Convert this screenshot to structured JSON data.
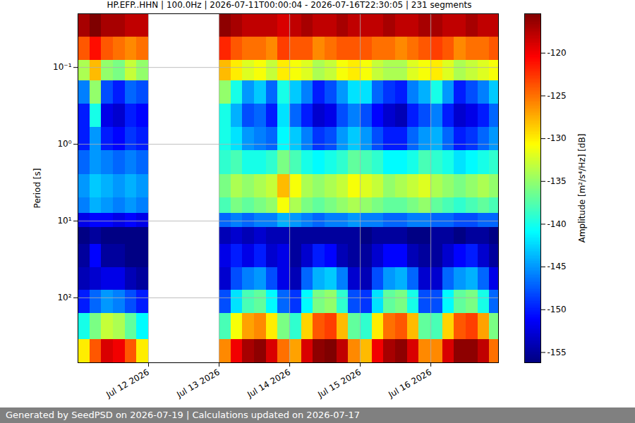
{
  "chart_data": {
    "type": "heatmap",
    "title": "HP.EFP..HHN | 100.0Hz | 2026-07-11T00:00:04 - 2026-07-16T22:30:05 | 231 segments",
    "caption": "Generated by SeedPSD on 2026-07-19 | Calculations updated on 2026-07-17",
    "y_label": "Period [s]",
    "x_edges": [
      "2026-07-11T00:00:00",
      "2026-07-11T04:00:00",
      "2026-07-11T08:00:00",
      "2026-07-11T12:00:00",
      "2026-07-11T16:00:00",
      "2026-07-11T20:00:00",
      "2026-07-12T00:00:00",
      "2026-07-12T04:00:00",
      "2026-07-12T08:00:00",
      "2026-07-12T12:00:00",
      "2026-07-12T16:00:00",
      "2026-07-12T20:00:00",
      "2026-07-13T00:00:00",
      "2026-07-13T04:00:00",
      "2026-07-13T08:00:00",
      "2026-07-13T12:00:00",
      "2026-07-13T16:00:00",
      "2026-07-13T20:00:00",
      "2026-07-14T00:00:00",
      "2026-07-14T04:00:00",
      "2026-07-14T08:00:00",
      "2026-07-14T12:00:00",
      "2026-07-14T16:00:00",
      "2026-07-14T20:00:00",
      "2026-07-15T00:00:00",
      "2026-07-15T04:00:00",
      "2026-07-15T08:00:00",
      "2026-07-15T12:00:00",
      "2026-07-15T16:00:00",
      "2026-07-15T20:00:00",
      "2026-07-16T00:00:00",
      "2026-07-16T04:00:00",
      "2026-07-16T08:00:00",
      "2026-07-16T12:00:00",
      "2026-07-16T16:00:00",
      "2026-07-16T20:00:00",
      "2026-07-17T00:00:00"
    ],
    "y_edges": [
      0.02,
      0.04,
      0.08,
      0.15,
      0.3,
      0.6,
      1.2,
      2.5,
      5,
      8,
      12,
      20,
      40,
      80,
      160,
      350,
      700
    ],
    "z": [
      [
        -117,
        -115,
        -117,
        -117,
        -118,
        -118,
        null,
        null,
        null,
        null,
        null,
        null,
        -116,
        -117,
        -118,
        -118,
        -118,
        -119,
        -118,
        -117,
        -118,
        -118,
        -117,
        -118,
        -118,
        -118,
        -117,
        -118,
        -118,
        -117,
        -117,
        -118,
        -118,
        -117,
        -118,
        -118
      ],
      [
        -124,
        -121,
        -124,
        -125,
        -126,
        -125,
        null,
        null,
        null,
        null,
        null,
        null,
        -122,
        -124,
        -125,
        -125,
        -126,
        -123,
        -124,
        -124,
        -126,
        -125,
        -124,
        -124,
        -124,
        -125,
        -125,
        -126,
        -125,
        -124,
        -123,
        -124,
        -126,
        -125,
        -125,
        -124
      ],
      [
        -134,
        -128,
        -135,
        -136,
        -133,
        -135,
        null,
        null,
        null,
        null,
        null,
        null,
        -128,
        -130,
        -132,
        -131,
        -133,
        -130,
        -131,
        -132,
        -134,
        -133,
        -131,
        -130,
        -131,
        -133,
        -134,
        -134,
        -132,
        -131,
        -130,
        -132,
        -134,
        -133,
        -132,
        -131
      ],
      [
        -146,
        -135,
        -148,
        -150,
        -147,
        -148,
        null,
        null,
        null,
        null,
        null,
        null,
        -135,
        -140,
        -145,
        -143,
        -147,
        -140,
        -143,
        -146,
        -150,
        -148,
        -145,
        -142,
        -142,
        -147,
        -149,
        -150,
        -146,
        -144,
        -140,
        -145,
        -150,
        -148,
        -146,
        -143
      ],
      [
        -150,
        -140,
        -152,
        -153,
        -150,
        -151,
        null,
        null,
        null,
        null,
        null,
        null,
        -140,
        -144,
        -148,
        -147,
        -150,
        -142,
        -147,
        -150,
        -153,
        -152,
        -148,
        -146,
        -148,
        -151,
        -153,
        -154,
        -150,
        -148,
        -146,
        -150,
        -153,
        -152,
        -150,
        -147
      ],
      [
        -150,
        -145,
        -150,
        -151,
        -149,
        -150,
        null,
        null,
        null,
        null,
        null,
        null,
        -140,
        -142,
        -145,
        -146,
        -147,
        -141,
        -143,
        -146,
        -149,
        -148,
        -145,
        -143,
        -145,
        -148,
        -150,
        -150,
        -147,
        -145,
        -144,
        -147,
        -150,
        -149,
        -147,
        -145
      ],
      [
        -147,
        -145,
        -146,
        -147,
        -146,
        -147,
        null,
        null,
        null,
        null,
        null,
        null,
        -139,
        -138,
        -140,
        -140,
        -139,
        -136,
        -138,
        -140,
        -141,
        -140,
        -139,
        -137,
        -138,
        -139,
        -141,
        -141,
        -140,
        -138,
        -139,
        -140,
        -142,
        -141,
        -140,
        -139
      ],
      [
        -145,
        -143,
        -144,
        -145,
        -144,
        -145,
        null,
        null,
        null,
        null,
        null,
        null,
        -136,
        -134,
        -135,
        -134,
        -133,
        -128,
        -131,
        -134,
        -135,
        -134,
        -133,
        -131,
        -132,
        -133,
        -135,
        -134,
        -133,
        -132,
        -134,
        -135,
        -136,
        -135,
        -134,
        -135
      ],
      [
        -146,
        -144,
        -145,
        -146,
        -145,
        -146,
        null,
        null,
        null,
        null,
        null,
        null,
        -138,
        -136,
        -137,
        -136,
        -135,
        -131,
        -134,
        -136,
        -137,
        -136,
        -135,
        -134,
        -135,
        -136,
        -137,
        -137,
        -136,
        -135,
        -137,
        -138,
        -139,
        -138,
        -137,
        -138
      ],
      [
        -152,
        -151,
        -151,
        -152,
        -151,
        -152,
        null,
        null,
        null,
        null,
        null,
        null,
        -147,
        -146,
        -147,
        -146,
        -146,
        -144,
        -145,
        -146,
        -147,
        -146,
        -146,
        -145,
        -146,
        -146,
        -147,
        -147,
        -146,
        -146,
        -147,
        -147,
        -148,
        -148,
        -147,
        -147
      ],
      [
        -156,
        -155,
        -156,
        -156,
        -156,
        -156,
        null,
        null,
        null,
        null,
        null,
        null,
        -154,
        -153,
        -154,
        -153,
        -154,
        -154,
        -155,
        -155,
        -155,
        -155,
        -155,
        -155,
        -156,
        -155,
        -155,
        -155,
        -156,
        -156,
        -155,
        -155,
        -156,
        -155,
        -155,
        -156
      ],
      [
        -155,
        -151,
        -155,
        -155,
        -156,
        -156,
        null,
        null,
        null,
        null,
        null,
        null,
        -152,
        -150,
        -152,
        -150,
        -153,
        -152,
        -155,
        -153,
        -150,
        -151,
        -154,
        -155,
        -155,
        -153,
        -151,
        -151,
        -154,
        -155,
        -155,
        -153,
        -151,
        -150,
        -153,
        -155
      ],
      [
        -154,
        -153,
        -152,
        -152,
        -154,
        -155,
        null,
        null,
        null,
        null,
        null,
        null,
        -153,
        -148,
        -146,
        -145,
        -148,
        -152,
        -154,
        -147,
        -144,
        -143,
        -146,
        -153,
        -154,
        -148,
        -145,
        -144,
        -147,
        -153,
        -153,
        -147,
        -145,
        -144,
        -147,
        -152
      ],
      [
        -150,
        -147,
        -145,
        -146,
        -148,
        -150,
        null,
        null,
        null,
        null,
        null,
        null,
        -148,
        -142,
        -138,
        -137,
        -141,
        -147,
        -149,
        -141,
        -136,
        -135,
        -139,
        -148,
        -149,
        -142,
        -137,
        -136,
        -140,
        -148,
        -148,
        -141,
        -137,
        -136,
        -140,
        -147
      ],
      [
        -140,
        -136,
        -133,
        -134,
        -137,
        -141,
        null,
        null,
        null,
        null,
        null,
        null,
        -138,
        -131,
        -127,
        -126,
        -130,
        -136,
        -139,
        -129,
        -124,
        -123,
        -128,
        -137,
        -139,
        -130,
        -125,
        -124,
        -128,
        -137,
        -138,
        -129,
        -124,
        -123,
        -127,
        -136
      ],
      [
        -130,
        -124,
        -119,
        -120,
        -124,
        -130,
        null,
        null,
        null,
        null,
        null,
        null,
        -126,
        -120,
        -117,
        -116,
        -119,
        -125,
        -127,
        -119,
        -116,
        -115,
        -118,
        -126,
        -128,
        -120,
        -117,
        -116,
        -119,
        -126,
        -126,
        -119,
        -116,
        -116,
        -118,
        -125
      ]
    ],
    "xlim": [
      "2026-07-11T00:00:00",
      "2026-07-16T23:00:00"
    ],
    "xticks": [
      {
        "value": "2026-07-12T00:00:00",
        "label": "Jul 12 2026"
      },
      {
        "value": "2026-07-13T00:00:00",
        "label": "Jul 13 2026"
      },
      {
        "value": "2026-07-14T00:00:00",
        "label": "Jul 14 2026"
      },
      {
        "value": "2026-07-15T00:00:00",
        "label": "Jul 15 2026"
      },
      {
        "value": "2026-07-16T00:00:00",
        "label": "Jul 16 2026"
      }
    ],
    "ylim": [
      0.02,
      700
    ],
    "yticks": [
      {
        "value": 0.1,
        "label": "10⁻¹"
      },
      {
        "value": 1,
        "label": "10⁰"
      },
      {
        "value": 10,
        "label": "10¹"
      },
      {
        "value": 100,
        "label": "10²"
      }
    ],
    "log": "y",
    "grid": true,
    "colorbar": {
      "label": "Amplitude [m²/s⁴/Hz] [dB]",
      "range": [
        -156.2,
        -115.4
      ],
      "ticks": [
        -155,
        -150,
        -145,
        -140,
        -135,
        -130,
        -125,
        -120
      ]
    }
  }
}
